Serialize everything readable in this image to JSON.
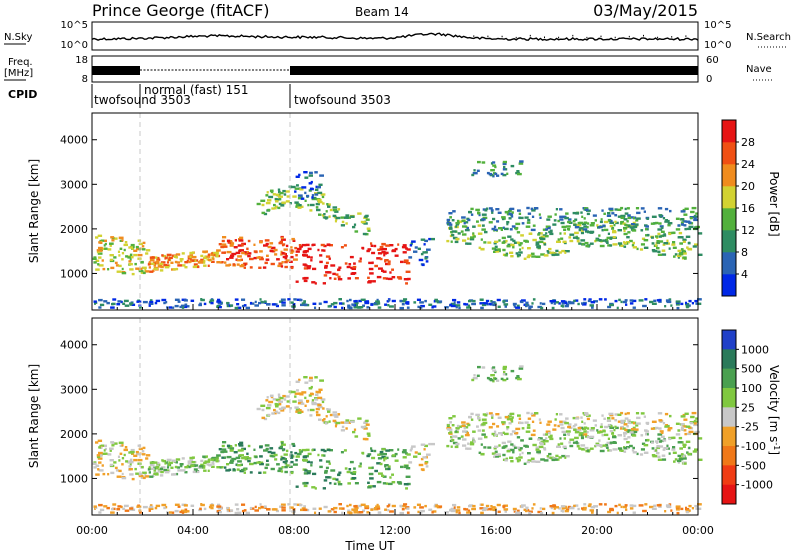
{
  "header": {
    "station": "Prince George (fitACF)",
    "beam": "Beam 14",
    "date": "03/May/2015"
  },
  "colors": {
    "power": [
      "#0028e6",
      "#2a64b4",
      "#2e8c62",
      "#52b03c",
      "#d2d232",
      "#f08c1e",
      "#f05014",
      "#e61414"
    ],
    "velocity": [
      "#2040c8",
      "#2a7a5a",
      "#4aa050",
      "#80c840",
      "#c8c8c8",
      "#f0a028",
      "#f07818",
      "#f03c14",
      "#e61414"
    ]
  },
  "top_panels": {
    "noise": {
      "left_label": "N.Sky",
      "left_ticks": [
        "10^5",
        "10^0"
      ],
      "right_ticks": [
        "10^5",
        "10^0"
      ],
      "right_label": "N.Search"
    },
    "freq": {
      "left_label_1": "Freq.",
      "left_label_2": "[MHz]",
      "left_ticks": [
        "18",
        "8"
      ],
      "right_ticks": [
        "60",
        "0"
      ],
      "right_label": "Nave"
    },
    "cpid": {
      "label": "CPID",
      "segments": [
        {
          "name": "twofsound 3503",
          "start_h": 0,
          "end_h": 2
        },
        {
          "name": "normal (fast) 151",
          "start_h": 2,
          "end_h": 8
        },
        {
          "name": "twofsound 3503",
          "start_h": 8,
          "end_h": 24
        }
      ]
    }
  },
  "chart_data": [
    {
      "type": "heatmap",
      "title": "Power",
      "xlabel": "Time UT",
      "ylabel": "Slant Range [km]",
      "x_ticks": [
        "00:00",
        "04:00",
        "08:00",
        "12:00",
        "16:00",
        "20:00",
        "00:00"
      ],
      "x_range_hours": [
        0,
        24
      ],
      "y_ticks": [
        1000,
        2000,
        3000,
        4000
      ],
      "ylim": [
        180,
        4600
      ],
      "colorbar": {
        "label": "Power [dB]",
        "ticks": [
          4,
          8,
          12,
          16,
          20,
          24,
          28
        ],
        "range": [
          0,
          32
        ]
      }
    },
    {
      "type": "heatmap",
      "title": "Velocity",
      "xlabel": "Time UT",
      "ylabel": "Slant Range [km]",
      "x_ticks": [
        "00:00",
        "04:00",
        "08:00",
        "12:00",
        "16:00",
        "20:00",
        "00:00"
      ],
      "x_range_hours": [
        0,
        24
      ],
      "y_ticks": [
        1000,
        2000,
        3000,
        4000
      ],
      "ylim": [
        180,
        4600
      ],
      "colorbar": {
        "label": "Velocity [m s^-1]",
        "ticks": [
          "1000",
          "500",
          "100",
          "25",
          "-25",
          "-100",
          "-500",
          "-1000"
        ]
      }
    }
  ]
}
